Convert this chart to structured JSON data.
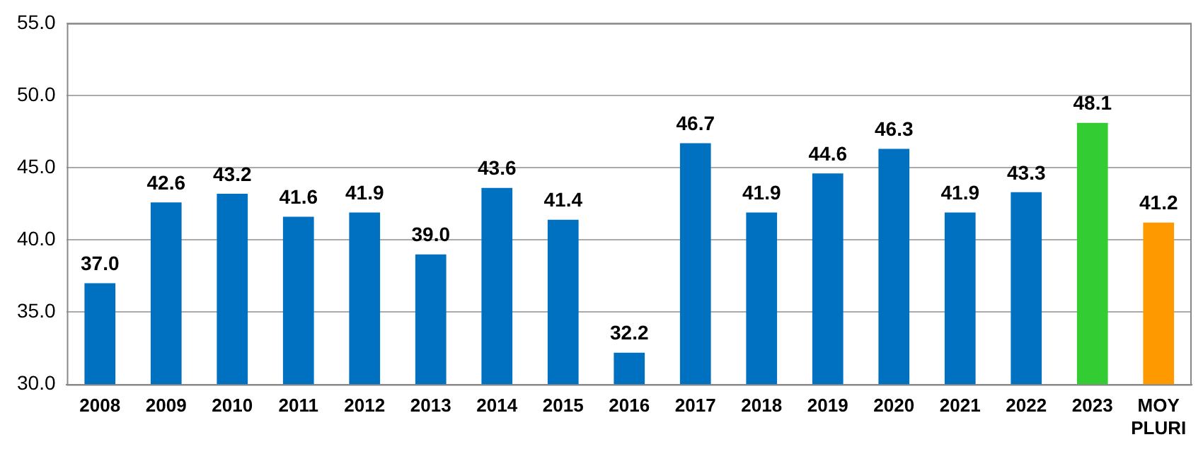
{
  "chart_data": {
    "type": "bar",
    "categories": [
      "2008",
      "2009",
      "2010",
      "2011",
      "2012",
      "2013",
      "2014",
      "2015",
      "2016",
      "2017",
      "2018",
      "2019",
      "2020",
      "2021",
      "2022",
      "2023",
      "MOY PLURI"
    ],
    "values": [
      37.0,
      42.6,
      43.2,
      41.6,
      41.9,
      39.0,
      43.6,
      41.4,
      32.2,
      46.7,
      41.9,
      44.6,
      46.3,
      41.9,
      43.3,
      48.1,
      41.2
    ],
    "value_labels": [
      "37.0",
      "42.6",
      "43.2",
      "41.6",
      "41.9",
      "39.0",
      "43.6",
      "41.4",
      "32.2",
      "46.7",
      "41.9",
      "44.6",
      "46.3",
      "41.9",
      "43.3",
      "48.1",
      "41.2"
    ],
    "colors": [
      "#0070c0",
      "#0070c0",
      "#0070c0",
      "#0070c0",
      "#0070c0",
      "#0070c0",
      "#0070c0",
      "#0070c0",
      "#0070c0",
      "#0070c0",
      "#0070c0",
      "#0070c0",
      "#0070c0",
      "#0070c0",
      "#0070c0",
      "#33cc33",
      "#ff9900"
    ],
    "ylim": [
      30,
      55
    ],
    "yticks": [
      {
        "value": 30,
        "label": "30.0"
      },
      {
        "value": 35,
        "label": "35.0"
      },
      {
        "value": 40,
        "label": "40.0"
      },
      {
        "value": 45,
        "label": "45.0"
      },
      {
        "value": 50,
        "label": "50.0"
      },
      {
        "value": 55,
        "label": "55.0"
      }
    ],
    "grid": "y",
    "legend": false
  }
}
